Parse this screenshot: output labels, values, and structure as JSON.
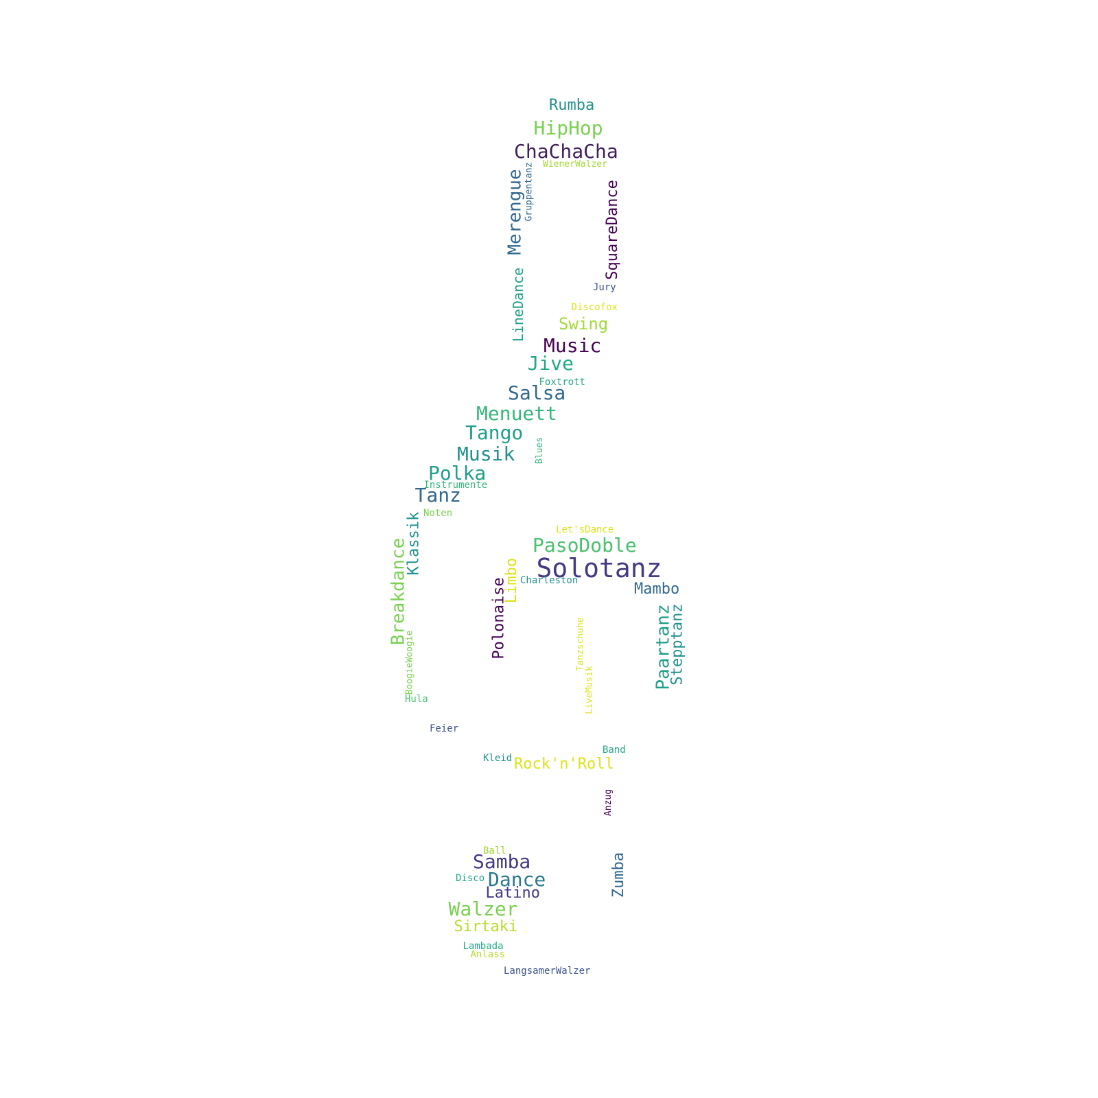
{
  "words": [
    {
      "text": "Rumba",
      "color": "#21918c"
    },
    {
      "text": "HipHop",
      "color": "#7ad151"
    },
    {
      "text": "ChaChaCha",
      "color": "#3e1f5a"
    },
    {
      "text": "WienerWalzer",
      "color": "#a2da37"
    },
    {
      "text": "Gruppentanz",
      "color": "#31688e"
    },
    {
      "text": "Merengue",
      "color": "#31688e"
    },
    {
      "text": "SquareDance",
      "color": "#440154"
    },
    {
      "text": "Jury",
      "color": "#3b528b"
    },
    {
      "text": "Discofox",
      "color": "#dde318"
    },
    {
      "text": "Swing",
      "color": "#a2da37"
    },
    {
      "text": "LineDance",
      "color": "#1f9e89"
    },
    {
      "text": "Music",
      "color": "#440154"
    },
    {
      "text": "Jive",
      "color": "#22a884"
    },
    {
      "text": "Foxtrott",
      "color": "#22a884"
    },
    {
      "text": "Salsa",
      "color": "#31688e"
    },
    {
      "text": "Menuett",
      "color": "#35b779"
    },
    {
      "text": "Tango",
      "color": "#1f9e89"
    },
    {
      "text": "Musik",
      "color": "#21918c"
    },
    {
      "text": "Blues",
      "color": "#35b779"
    },
    {
      "text": "Polka",
      "color": "#1f9e89"
    },
    {
      "text": "Instrumente",
      "color": "#35b779"
    },
    {
      "text": "Tanz",
      "color": "#31688e"
    },
    {
      "text": "Klassik",
      "color": "#21918c"
    },
    {
      "text": "Noten",
      "color": "#7ad151"
    },
    {
      "text": "Let'sDance",
      "color": "#dde318"
    },
    {
      "text": "PasoDoble",
      "color": "#4ac16d"
    },
    {
      "text": "Solotanz",
      "color": "#443983"
    },
    {
      "text": "Breakdance",
      "color": "#7ad151"
    },
    {
      "text": "Limbo",
      "color": "#dde318"
    },
    {
      "text": "Charleston",
      "color": "#21918c"
    },
    {
      "text": "Mambo",
      "color": "#31688e"
    },
    {
      "text": "Polonaise",
      "color": "#440154"
    },
    {
      "text": "Paartanz",
      "color": "#1f9e89"
    },
    {
      "text": "Stepptanz",
      "color": "#21918c"
    },
    {
      "text": "Tanzschuhe",
      "color": "#dde318"
    },
    {
      "text": "BoogieWoogie",
      "color": "#7ad151"
    },
    {
      "text": "LiveMusik",
      "color": "#dde318"
    },
    {
      "text": "Hula",
      "color": "#4ac16d"
    },
    {
      "text": "Feier",
      "color": "#3b528b"
    },
    {
      "text": "Band",
      "color": "#22a884"
    },
    {
      "text": "Kleid",
      "color": "#21918c"
    },
    {
      "text": "Rock'n'Roll",
      "color": "#dde318"
    },
    {
      "text": "Anzug",
      "color": "#440154"
    },
    {
      "text": "Ball",
      "color": "#a2da37"
    },
    {
      "text": "Samba",
      "color": "#443983"
    },
    {
      "text": "Disco",
      "color": "#22a884"
    },
    {
      "text": "Dance",
      "color": "#2a788e"
    },
    {
      "text": "Zumba",
      "color": "#31688e"
    },
    {
      "text": "Latino",
      "color": "#443983"
    },
    {
      "text": "Walzer",
      "color": "#7ad151"
    },
    {
      "text": "Sirtaki",
      "color": "#b5de2b"
    },
    {
      "text": "Lambada",
      "color": "#22a884"
    },
    {
      "text": "Anlass",
      "color": "#b5de2b"
    },
    {
      "text": "LangsamerWalzer",
      "color": "#3b528b"
    }
  ]
}
